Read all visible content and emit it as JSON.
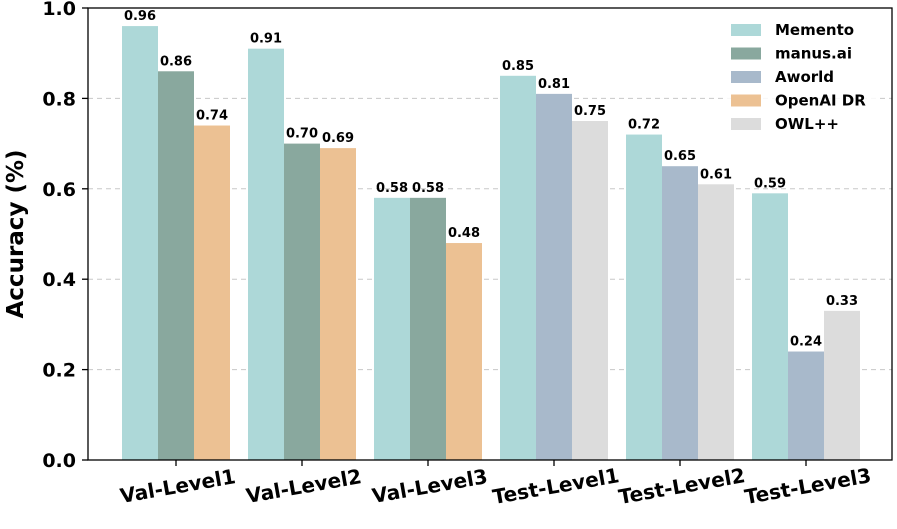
{
  "chart_data": {
    "type": "bar",
    "categories": [
      "Val-Level1",
      "Val-Level2",
      "Val-Level3",
      "Test-Level1",
      "Test-Level2",
      "Test-Level3"
    ],
    "ylabel": "Accuracy (%)",
    "xlabel": "",
    "ylim": [
      0.0,
      1.0
    ],
    "yticks": [
      0.0,
      0.2,
      0.4,
      0.6,
      0.8,
      1.0
    ],
    "ytick_labels": [
      "0.0",
      "0.2",
      "0.4",
      "0.6",
      "0.8",
      "1.0"
    ],
    "grid": true,
    "legend_position": "top-right",
    "series": [
      {
        "name": "Memento",
        "color": "#add8d8",
        "values": [
          0.96,
          0.91,
          0.58,
          0.85,
          0.72,
          0.59
        ],
        "labels": [
          "0.96",
          "0.91",
          "0.58",
          "0.85",
          "0.72",
          "0.59"
        ]
      },
      {
        "name": "manus.ai",
        "color": "#89a89e",
        "values": [
          0.86,
          0.7,
          0.58,
          null,
          null,
          null
        ],
        "labels": [
          "0.86",
          "0.70",
          "0.58",
          null,
          null,
          null
        ]
      },
      {
        "name": "Aworld",
        "color": "#a8b9cb",
        "values": [
          null,
          null,
          null,
          0.81,
          0.65,
          0.24
        ],
        "labels": [
          null,
          null,
          null,
          "0.81",
          "0.65",
          "0.24"
        ]
      },
      {
        "name": "OpenAI DR",
        "color": "#ecc193",
        "values": [
          0.74,
          0.69,
          0.48,
          null,
          null,
          null
        ],
        "labels": [
          "0.74",
          "0.69",
          "0.48",
          null,
          null,
          null
        ]
      },
      {
        "name": "OWL++",
        "color": "#dcdcdc",
        "values": [
          null,
          null,
          null,
          0.75,
          0.61,
          0.33
        ],
        "labels": [
          null,
          null,
          null,
          "0.75",
          "0.61",
          "0.33"
        ]
      }
    ]
  }
}
